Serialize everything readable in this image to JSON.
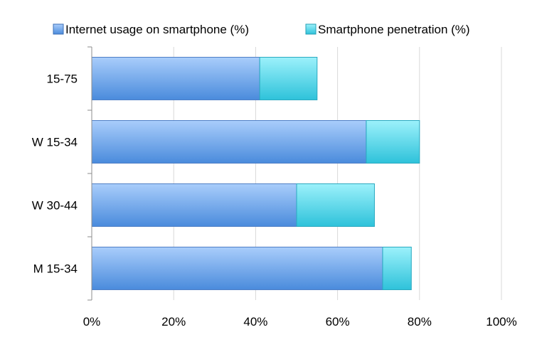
{
  "chart_data": {
    "type": "bar",
    "orientation": "horizontal",
    "stacked": true,
    "categories": [
      "15-75",
      "W 15-34",
      "W 30-44",
      "M 15-34"
    ],
    "series": [
      {
        "name": "Internet usage on smartphone (%)",
        "values": [
          41,
          67,
          50,
          71
        ],
        "color": "#5b93df"
      },
      {
        "name": "Smartphone penetration (%)",
        "values": [
          14,
          13,
          19,
          7
        ],
        "color": "#3dc8de"
      }
    ],
    "x_ticks": [
      "0%",
      "20%",
      "40%",
      "60%",
      "80%",
      "100%"
    ],
    "xlim": [
      0,
      100
    ],
    "grid": true,
    "legend_position": "top"
  }
}
